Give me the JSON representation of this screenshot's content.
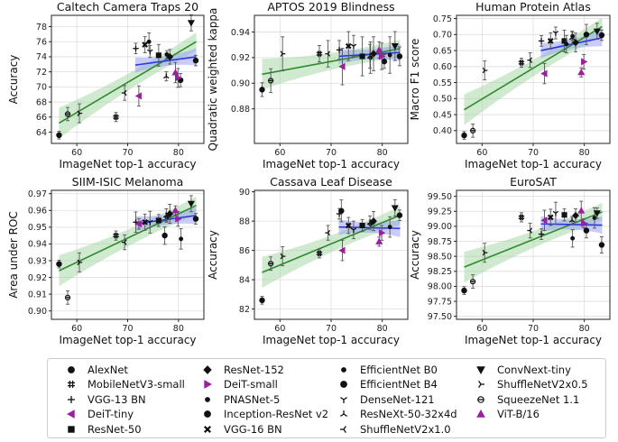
{
  "chart_data": [
    {
      "type": "scatter",
      "title": "Caltech Camera Traps 20",
      "xlabel": "ImageNet top-1 accuracy",
      "ylabel": "Accuracy",
      "xlim": [
        55,
        85
      ],
      "ylim": [
        62.5,
        79.5
      ],
      "xticks": [
        60,
        70,
        80
      ],
      "yticks": [
        64,
        66,
        68,
        70,
        72,
        74,
        76,
        78
      ],
      "grid": true,
      "fit_all": {
        "x0": 56.5,
        "y0": 65.2,
        "x1": 83.5,
        "y1": 76.0
      },
      "fit_top": {
        "x0": 71.5,
        "y0": 72.9,
        "x1": 83.5,
        "y1": 74.0
      },
      "points": [
        {
          "m": "AlexNet",
          "x": 56.5,
          "y": 63.6
        },
        {
          "m": "SqueezeNet 1.1",
          "x": 58.2,
          "y": 66.4
        },
        {
          "m": "ShuffleNetV2x0.5",
          "x": 60.5,
          "y": 66.5
        },
        {
          "m": "MobileNetV3-small",
          "x": 67.7,
          "y": 66.0
        },
        {
          "m": "ShuffleNetV2x1.0",
          "x": 69.4,
          "y": 69.2
        },
        {
          "m": "DeiT-tiny",
          "x": 72.2,
          "y": 68.8
        },
        {
          "m": "VGG-13 BN",
          "x": 71.6,
          "y": 75.1
        },
        {
          "m": "VGG-16 BN",
          "x": 73.4,
          "y": 75.6
        },
        {
          "m": "ResNet-50",
          "x": 76.1,
          "y": 74.2
        },
        {
          "m": "DenseNet-121",
          "x": 74.4,
          "y": 74.7
        },
        {
          "m": "PNASNet-5",
          "x": 74.2,
          "y": 76.0
        },
        {
          "m": "EfficientNet B0",
          "x": 77.7,
          "y": 74.3
        },
        {
          "m": "Inception-ResNet v2",
          "x": 80.4,
          "y": 70.9
        },
        {
          "m": "DeiT-small",
          "x": 79.9,
          "y": 71.2
        },
        {
          "m": "ResNeXt-50-32x4d",
          "x": 77.6,
          "y": 71.4
        },
        {
          "m": "ResNet-152",
          "x": 78.3,
          "y": 74.0
        },
        {
          "m": "ViT-B/16",
          "x": 79.4,
          "y": 71.9
        },
        {
          "m": "EfficientNet B4",
          "x": 83.4,
          "y": 73.5
        },
        {
          "m": "ConvNext-tiny",
          "x": 82.5,
          "y": 78.5
        }
      ]
    },
    {
      "type": "scatter",
      "title": "APTOS 2019 Blindness",
      "xlabel": "ImageNet top-1 accuracy",
      "ylabel": "Quadratic weighted kappa",
      "xlim": [
        55,
        85
      ],
      "ylim": [
        0.853,
        0.953
      ],
      "xticks": [
        60,
        70,
        80
      ],
      "yticks": [
        0.88,
        0.9,
        0.92,
        0.94
      ],
      "grid": true,
      "fit_all": {
        "x0": 56.5,
        "y0": 0.907,
        "x1": 83.5,
        "y1": 0.927
      },
      "fit_top": {
        "x0": 71.5,
        "y0": 0.921,
        "x1": 83.5,
        "y1": 0.924
      },
      "points": [
        {
          "m": "AlexNet",
          "x": 56.5,
          "y": 0.895
        },
        {
          "m": "SqueezeNet 1.1",
          "x": 58.2,
          "y": 0.902
        },
        {
          "m": "ShuffleNetV2x0.5",
          "x": 60.5,
          "y": 0.923
        },
        {
          "m": "MobileNetV3-small",
          "x": 67.7,
          "y": 0.923
        },
        {
          "m": "ShuffleNetV2x1.0",
          "x": 69.4,
          "y": 0.923
        },
        {
          "m": "DeiT-tiny",
          "x": 72.2,
          "y": 0.913
        },
        {
          "m": "VGG-13 BN",
          "x": 71.6,
          "y": 0.926
        },
        {
          "m": "VGG-16 BN",
          "x": 73.4,
          "y": 0.929
        },
        {
          "m": "ResNet-50",
          "x": 76.1,
          "y": 0.921
        },
        {
          "m": "DenseNet-121",
          "x": 74.4,
          "y": 0.929
        },
        {
          "m": "EfficientNet B0",
          "x": 77.7,
          "y": 0.92
        },
        {
          "m": "Inception-ResNet v2",
          "x": 80.4,
          "y": 0.917
        },
        {
          "m": "ResNeXt-50-32x4d",
          "x": 77.6,
          "y": 0.921
        },
        {
          "m": "ResNet-152",
          "x": 78.3,
          "y": 0.923
        },
        {
          "m": "ViT-B/16",
          "x": 79.4,
          "y": 0.926
        },
        {
          "m": "DeiT-small",
          "x": 79.9,
          "y": 0.921
        },
        {
          "m": "PNASNet-5",
          "x": 81.5,
          "y": 0.922
        },
        {
          "m": "EfficientNet B4",
          "x": 83.4,
          "y": 0.921
        },
        {
          "m": "ConvNext-tiny",
          "x": 82.5,
          "y": 0.929
        }
      ]
    },
    {
      "type": "scatter",
      "title": "Human Protein Atlas",
      "xlabel": "ImageNet top-1 accuracy",
      "ylabel": "Macro F1 score",
      "xlim": [
        55,
        85
      ],
      "ylim": [
        0.36,
        0.76
      ],
      "xticks": [
        60,
        70,
        80
      ],
      "yticks": [
        0.4,
        0.45,
        0.5,
        0.55,
        0.6,
        0.65,
        0.7,
        0.75
      ],
      "grid": true,
      "fit_all": {
        "x0": 56.5,
        "y0": 0.465,
        "x1": 83.5,
        "y1": 0.725
      },
      "fit_top": {
        "x0": 71.5,
        "y0": 0.65,
        "x1": 83.5,
        "y1": 0.69
      },
      "points": [
        {
          "m": "AlexNet",
          "x": 56.5,
          "y": 0.385
        },
        {
          "m": "SqueezeNet 1.1",
          "x": 58.2,
          "y": 0.4
        },
        {
          "m": "ShuffleNetV2x0.5",
          "x": 60.5,
          "y": 0.588
        },
        {
          "m": "MobileNetV3-small",
          "x": 67.7,
          "y": 0.612
        },
        {
          "m": "ShuffleNetV2x1.0",
          "x": 69.4,
          "y": 0.62
        },
        {
          "m": "DeiT-tiny",
          "x": 72.2,
          "y": 0.578
        },
        {
          "m": "VGG-13 BN",
          "x": 71.6,
          "y": 0.68
        },
        {
          "m": "VGG-16 BN",
          "x": 73.4,
          "y": 0.68
        },
        {
          "m": "ResNet-50",
          "x": 76.1,
          "y": 0.68
        },
        {
          "m": "DenseNet-121",
          "x": 74.4,
          "y": 0.705
        },
        {
          "m": "PNASNet-5",
          "x": 76.5,
          "y": 0.67
        },
        {
          "m": "EfficientNet B0",
          "x": 77.7,
          "y": 0.695
        },
        {
          "m": "ResNeXt-50-32x4d",
          "x": 77.6,
          "y": 0.69
        },
        {
          "m": "ResNet-152",
          "x": 78.3,
          "y": 0.675
        },
        {
          "m": "ViT-B/16",
          "x": 79.4,
          "y": 0.582
        },
        {
          "m": "DeiT-small",
          "x": 79.9,
          "y": 0.615
        },
        {
          "m": "Inception-ResNet v2",
          "x": 80.4,
          "y": 0.7
        },
        {
          "m": "EfficientNet B4",
          "x": 83.4,
          "y": 0.698
        },
        {
          "m": "ConvNext-tiny",
          "x": 82.5,
          "y": 0.71
        }
      ]
    },
    {
      "type": "scatter",
      "title": "SIIM-ISIC Melanoma",
      "xlabel": "ImageNet top-1 accuracy",
      "ylabel": "Area under ROC",
      "xlim": [
        55,
        85
      ],
      "ylim": [
        0.895,
        0.972
      ],
      "xticks": [
        60,
        70,
        80
      ],
      "yticks": [
        0.9,
        0.91,
        0.92,
        0.93,
        0.94,
        0.95,
        0.96,
        0.97
      ],
      "grid": true,
      "fit_all": {
        "x0": 56.5,
        "y0": 0.924,
        "x1": 83.5,
        "y1": 0.963
      },
      "fit_top": {
        "x0": 71.5,
        "y0": 0.952,
        "x1": 83.5,
        "y1": 0.957
      },
      "points": [
        {
          "m": "AlexNet",
          "x": 56.5,
          "y": 0.928
        },
        {
          "m": "SqueezeNet 1.1",
          "x": 58.2,
          "y": 0.908
        },
        {
          "m": "ShuffleNetV2x0.5",
          "x": 60.5,
          "y": 0.929
        },
        {
          "m": "MobileNetV3-small",
          "x": 67.7,
          "y": 0.945
        },
        {
          "m": "ShuffleNetV2x1.0",
          "x": 69.4,
          "y": 0.941
        },
        {
          "m": "VGG-13 BN",
          "x": 71.6,
          "y": 0.953
        },
        {
          "m": "DeiT-tiny",
          "x": 72.2,
          "y": 0.952
        },
        {
          "m": "VGG-16 BN",
          "x": 73.4,
          "y": 0.953
        },
        {
          "m": "DenseNet-121",
          "x": 74.4,
          "y": 0.953
        },
        {
          "m": "ResNet-50",
          "x": 76.1,
          "y": 0.954
        },
        {
          "m": "Inception-ResNet v2",
          "x": 77.3,
          "y": 0.945
        },
        {
          "m": "EfficientNet B0",
          "x": 77.7,
          "y": 0.956
        },
        {
          "m": "ResNeXt-50-32x4d",
          "x": 77.6,
          "y": 0.957
        },
        {
          "m": "ResNet-152",
          "x": 78.3,
          "y": 0.958
        },
        {
          "m": "ViT-B/16",
          "x": 79.4,
          "y": 0.96
        },
        {
          "m": "DeiT-small",
          "x": 79.9,
          "y": 0.955
        },
        {
          "m": "PNASNet-5",
          "x": 80.5,
          "y": 0.943
        },
        {
          "m": "EfficientNet B4",
          "x": 83.4,
          "y": 0.955
        },
        {
          "m": "ConvNext-tiny",
          "x": 82.5,
          "y": 0.964
        }
      ]
    },
    {
      "type": "scatter",
      "title": "Cassava Leaf Disease",
      "xlabel": "ImageNet top-1 accuracy",
      "ylabel": "Accuracy",
      "xlim": [
        55,
        85
      ],
      "ylim": [
        81.3,
        90.1
      ],
      "xticks": [
        60,
        70,
        80
      ],
      "yticks": [
        82,
        84,
        86,
        88,
        90
      ],
      "grid": true,
      "fit_all": {
        "x0": 56.5,
        "y0": 84.5,
        "x1": 83.5,
        "y1": 88.4
      },
      "fit_top": {
        "x0": 71.5,
        "y0": 87.6,
        "x1": 83.5,
        "y1": 87.5
      },
      "points": [
        {
          "m": "AlexNet",
          "x": 56.5,
          "y": 82.6
        },
        {
          "m": "SqueezeNet 1.1",
          "x": 58.2,
          "y": 85.1
        },
        {
          "m": "ShuffleNetV2x0.5",
          "x": 60.5,
          "y": 85.6
        },
        {
          "m": "MobileNetV3-small",
          "x": 67.7,
          "y": 85.8
        },
        {
          "m": "ShuffleNetV2x1.0",
          "x": 69.4,
          "y": 87.2
        },
        {
          "m": "DeiT-tiny",
          "x": 72.2,
          "y": 86.0
        },
        {
          "m": "VGG-13 BN",
          "x": 71.6,
          "y": 88.5
        },
        {
          "m": "VGG-16 BN",
          "x": 73.4,
          "y": 87.7
        },
        {
          "m": "Inception-ResNet v2",
          "x": 72.0,
          "y": 88.7
        },
        {
          "m": "ResNet-50",
          "x": 76.1,
          "y": 87.7
        },
        {
          "m": "DenseNet-121",
          "x": 74.4,
          "y": 87.4
        },
        {
          "m": "EfficientNet B0",
          "x": 77.7,
          "y": 87.8
        },
        {
          "m": "ResNeXt-50-32x4d",
          "x": 77.6,
          "y": 87.9
        },
        {
          "m": "ResNet-152",
          "x": 78.3,
          "y": 88.0
        },
        {
          "m": "ViT-B/16",
          "x": 79.4,
          "y": 86.6
        },
        {
          "m": "DeiT-small",
          "x": 79.9,
          "y": 87.2
        },
        {
          "m": "PNASNet-5",
          "x": 81.5,
          "y": 87.6
        },
        {
          "m": "EfficientNet B4",
          "x": 83.4,
          "y": 88.4
        },
        {
          "m": "ConvNext-tiny",
          "x": 82.5,
          "y": 88.9
        }
      ]
    },
    {
      "type": "scatter",
      "title": "EuroSAT",
      "xlabel": "ImageNet top-1 accuracy",
      "ylabel": "Accuracy",
      "xlim": [
        55,
        85
      ],
      "ylim": [
        97.45,
        99.6
      ],
      "xticks": [
        60,
        70,
        80
      ],
      "yticks": [
        97.5,
        97.75,
        98.0,
        98.25,
        98.5,
        98.75,
        99.0,
        99.25,
        99.5
      ],
      "grid": true,
      "fit_all": {
        "x0": 56.5,
        "y0": 98.32,
        "x1": 83.5,
        "y1": 99.24
      },
      "fit_top": {
        "x0": 71.5,
        "y0": 99.04,
        "x1": 83.5,
        "y1": 99.02
      },
      "points": [
        {
          "m": "AlexNet",
          "x": 56.5,
          "y": 97.93
        },
        {
          "m": "SqueezeNet 1.1",
          "x": 58.2,
          "y": 98.08
        },
        {
          "m": "ShuffleNetV2x0.5",
          "x": 60.5,
          "y": 98.56
        },
        {
          "m": "MobileNetV3-small",
          "x": 67.7,
          "y": 99.15
        },
        {
          "m": "ShuffleNetV2x1.0",
          "x": 69.4,
          "y": 98.93
        },
        {
          "m": "DeiT-tiny",
          "x": 72.2,
          "y": 99.1
        },
        {
          "m": "VGG-13 BN",
          "x": 71.6,
          "y": 98.87
        },
        {
          "m": "VGG-16 BN",
          "x": 73.4,
          "y": 99.15
        },
        {
          "m": "DenseNet-121",
          "x": 74.4,
          "y": 99.22
        },
        {
          "m": "ResNet-50",
          "x": 76.1,
          "y": 99.19
        },
        {
          "m": "EfficientNet B0",
          "x": 77.7,
          "y": 98.8
        },
        {
          "m": "ResNeXt-50-32x4d",
          "x": 77.6,
          "y": 99.1
        },
        {
          "m": "ResNet-152",
          "x": 78.3,
          "y": 99.18
        },
        {
          "m": "ViT-B/16",
          "x": 79.4,
          "y": 99.26
        },
        {
          "m": "DeiT-small",
          "x": 79.9,
          "y": 99.05
        },
        {
          "m": "Inception-ResNet v2",
          "x": 80.4,
          "y": 98.93
        },
        {
          "m": "PNASNet-5",
          "x": 82.0,
          "y": 99.14
        },
        {
          "m": "ConvNext-tiny",
          "x": 82.5,
          "y": 99.22
        },
        {
          "m": "EfficientNet B4",
          "x": 83.4,
          "y": 98.69
        }
      ]
    }
  ],
  "legend": {
    "placement": "bottom-center",
    "items": [
      {
        "label": "AlexNet",
        "marker": "circle",
        "color": "#111111"
      },
      {
        "label": "MobileNetV3-small",
        "marker": "hash",
        "color": "#111111"
      },
      {
        "label": "VGG-13 BN",
        "marker": "plus",
        "color": "#111111"
      },
      {
        "label": "DeiT-tiny",
        "marker": "triangle-left",
        "color": "#9b1fa0"
      },
      {
        "label": "ResNet-50",
        "marker": "square",
        "color": "#111111"
      },
      {
        "label": "ResNet-152",
        "marker": "diamond",
        "color": "#111111"
      },
      {
        "label": "DeiT-small",
        "marker": "triangle-right",
        "color": "#9b1fa0"
      },
      {
        "label": "PNASNet-5",
        "marker": "circle-small",
        "color": "#111111"
      },
      {
        "label": "Inception-ResNet v2",
        "marker": "circle",
        "color": "#111111"
      },
      {
        "label": "VGG-16 BN",
        "marker": "x-filled",
        "color": "#111111"
      },
      {
        "label": "EfficientNet B0",
        "marker": "circle-small",
        "color": "#111111"
      },
      {
        "label": "EfficientNet B4",
        "marker": "circle",
        "color": "#111111"
      },
      {
        "label": "DenseNet-121",
        "marker": "tri-down",
        "color": "#111111"
      },
      {
        "label": "ResNeXt-50-32x4d",
        "marker": "tri-up",
        "color": "#111111"
      },
      {
        "label": "ShuffleNetV2x1.0",
        "marker": "tri-left",
        "color": "#111111"
      },
      {
        "label": "ConvNext-tiny",
        "marker": "triangle-down",
        "color": "#111111"
      },
      {
        "label": "ShuffleNetV2x0.5",
        "marker": "tri-right",
        "color": "#111111"
      },
      {
        "label": "SqueezeNet 1.1",
        "marker": "theta",
        "color": "#111111"
      },
      {
        "label": "ViT-B/16",
        "marker": "triangle-up",
        "color": "#9b1fa0"
      }
    ]
  },
  "colors": {
    "fit_all_line": "#2e8b2e",
    "fit_all_band": "#a8d8a8",
    "fit_top_line": "#2a36e0",
    "fit_top_band": "#9aa3ee",
    "grid": "#dddddd",
    "purple_models": "#9b1fa0"
  }
}
